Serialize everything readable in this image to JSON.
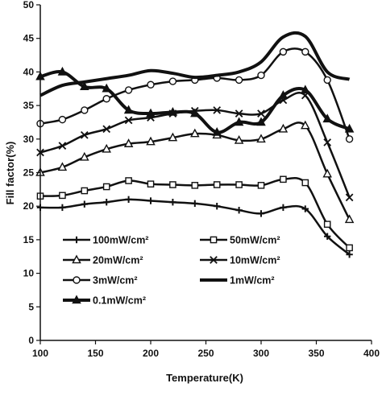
{
  "chart_data": {
    "type": "line",
    "xlabel": "Temperature(K)",
    "ylabel": "Fill factor(%)",
    "xlim": [
      100,
      400
    ],
    "ylim": [
      0,
      50
    ],
    "xticks": [
      100,
      150,
      200,
      250,
      300,
      350,
      400
    ],
    "yticks": [
      0,
      5,
      10,
      15,
      20,
      25,
      30,
      35,
      40,
      45,
      50
    ],
    "grid": false,
    "legend_placement": "lower-left",
    "series": [
      {
        "name": "100mW/cm²",
        "marker": "plus",
        "line_width": 2.5,
        "x": [
          100,
          120,
          140,
          160,
          180,
          200,
          220,
          240,
          260,
          280,
          300,
          320,
          340,
          360,
          380
        ],
        "y": [
          19.8,
          19.8,
          20.3,
          20.6,
          21.0,
          20.8,
          20.6,
          20.4,
          20.0,
          19.4,
          18.9,
          19.8,
          19.6,
          15.5,
          12.8
        ]
      },
      {
        "name": "50mW/cm²",
        "marker": "square",
        "line_width": 2.5,
        "x": [
          100,
          120,
          140,
          160,
          180,
          200,
          220,
          240,
          260,
          280,
          300,
          320,
          340,
          360,
          380
        ],
        "y": [
          21.5,
          21.6,
          22.3,
          22.9,
          23.8,
          23.3,
          23.2,
          23.1,
          23.2,
          23.2,
          23.1,
          24.0,
          23.5,
          17.3,
          13.8
        ]
      },
      {
        "name": "20mW/cm²",
        "marker": "triangle-open",
        "line_width": 2.5,
        "x": [
          100,
          120,
          140,
          160,
          180,
          200,
          220,
          240,
          260,
          280,
          300,
          320,
          340,
          360,
          380
        ],
        "y": [
          25.0,
          25.8,
          27.3,
          28.5,
          29.3,
          29.6,
          30.2,
          30.8,
          30.6,
          29.8,
          30.0,
          31.5,
          32.0,
          24.8,
          18.0
        ]
      },
      {
        "name": "10mW/cm²",
        "marker": "x",
        "line_width": 2.5,
        "x": [
          100,
          120,
          140,
          160,
          180,
          200,
          220,
          240,
          260,
          280,
          300,
          320,
          340,
          360,
          380
        ],
        "y": [
          28.0,
          29.0,
          30.6,
          31.5,
          32.8,
          33.2,
          33.8,
          34.2,
          34.3,
          33.8,
          33.8,
          35.8,
          36.5,
          29.5,
          21.3
        ]
      },
      {
        "name": "3mW/cm²",
        "marker": "circle",
        "line_width": 2.5,
        "x": [
          100,
          120,
          140,
          160,
          180,
          200,
          220,
          240,
          260,
          280,
          300,
          320,
          340,
          360,
          380
        ],
        "y": [
          32.3,
          32.9,
          34.3,
          36.0,
          37.3,
          38.1,
          38.6,
          38.8,
          39.1,
          38.8,
          39.5,
          43.0,
          43.0,
          38.8,
          30.0
        ]
      },
      {
        "name": "1mW/cm²",
        "marker": "none",
        "line_width": 4,
        "x": [
          100,
          120,
          140,
          160,
          180,
          200,
          220,
          240,
          260,
          280,
          300,
          320,
          340,
          360,
          380
        ],
        "y": [
          36.5,
          38.0,
          38.5,
          39.0,
          39.5,
          40.2,
          39.8,
          39.2,
          39.5,
          40.0,
          41.5,
          45.2,
          45.3,
          40.0,
          38.9
        ]
      },
      {
        "name": "0.1mW/cm²",
        "marker": "triangle-filled",
        "line_width": 4,
        "x": [
          100,
          120,
          140,
          160,
          180,
          200,
          220,
          240,
          260,
          280,
          300,
          320,
          340,
          360,
          380
        ],
        "y": [
          39.3,
          40.0,
          37.8,
          37.5,
          34.3,
          33.8,
          34.0,
          33.8,
          31.0,
          32.5,
          32.5,
          36.5,
          37.3,
          33.0,
          31.5
        ]
      }
    ]
  }
}
